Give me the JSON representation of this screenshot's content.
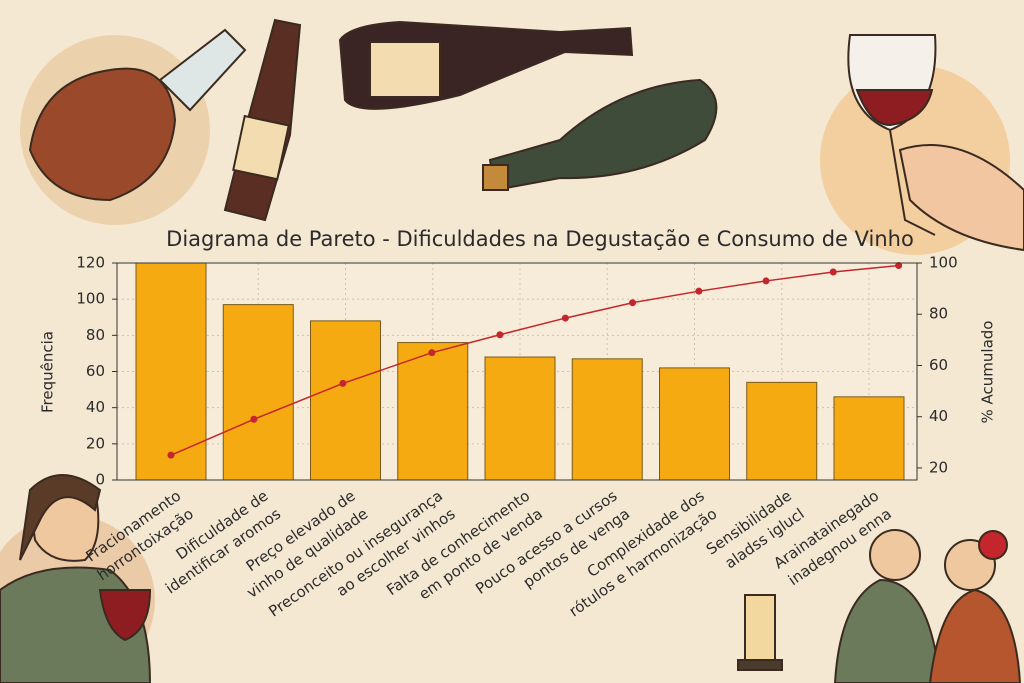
{
  "chart_data": {
    "type": "pareto",
    "title": "Diagrama de Pareto - Dificuldades na Degustação e Consumo de Vinho",
    "ylabel": "Frequência",
    "y2label": "% Acumulado",
    "categories": [
      [
        "Fracionamento",
        "horrontoixação"
      ],
      [
        "Dificuldade de",
        "identificar aromos"
      ],
      [
        "Preço elevado de",
        "vinho de qualidade"
      ],
      [
        "Preconceito ou insegurança",
        "ao escolher vinhos"
      ],
      [
        "Falta de conhecimento",
        "em ponto de venda"
      ],
      [
        "Pouco acesso a cursos",
        "pontos de venga"
      ],
      [
        "Complexidade dos",
        "rótulos e harmonização"
      ],
      [
        "Sensibilidade",
        "aladss iglucl"
      ],
      [
        "Arainatainegado",
        "inadegnou enna"
      ]
    ],
    "series": [
      {
        "name": "Frequência",
        "type": "bar",
        "color": "#f5aa12",
        "values": [
          120,
          97,
          88,
          76,
          68,
          67,
          62,
          54,
          46
        ]
      },
      {
        "name": "% Acumulado",
        "type": "line",
        "axis": "y2",
        "color": "#c4262b",
        "x": [
          0,
          0.95,
          1.97,
          2.99,
          3.77,
          4.52,
          5.29,
          6.05,
          6.82,
          7.59,
          8.34
        ],
        "values": [
          25,
          39,
          53,
          65,
          72,
          78.5,
          84.5,
          89,
          93,
          96.5,
          99
        ]
      }
    ],
    "ylim": [
      0,
      120
    ],
    "yticks": [
      0,
      20,
      40,
      60,
      80,
      100,
      120
    ],
    "y2lim": [
      15.3,
      100
    ],
    "y2ticks": [
      20,
      40,
      60,
      80,
      100
    ],
    "grid": true
  }
}
